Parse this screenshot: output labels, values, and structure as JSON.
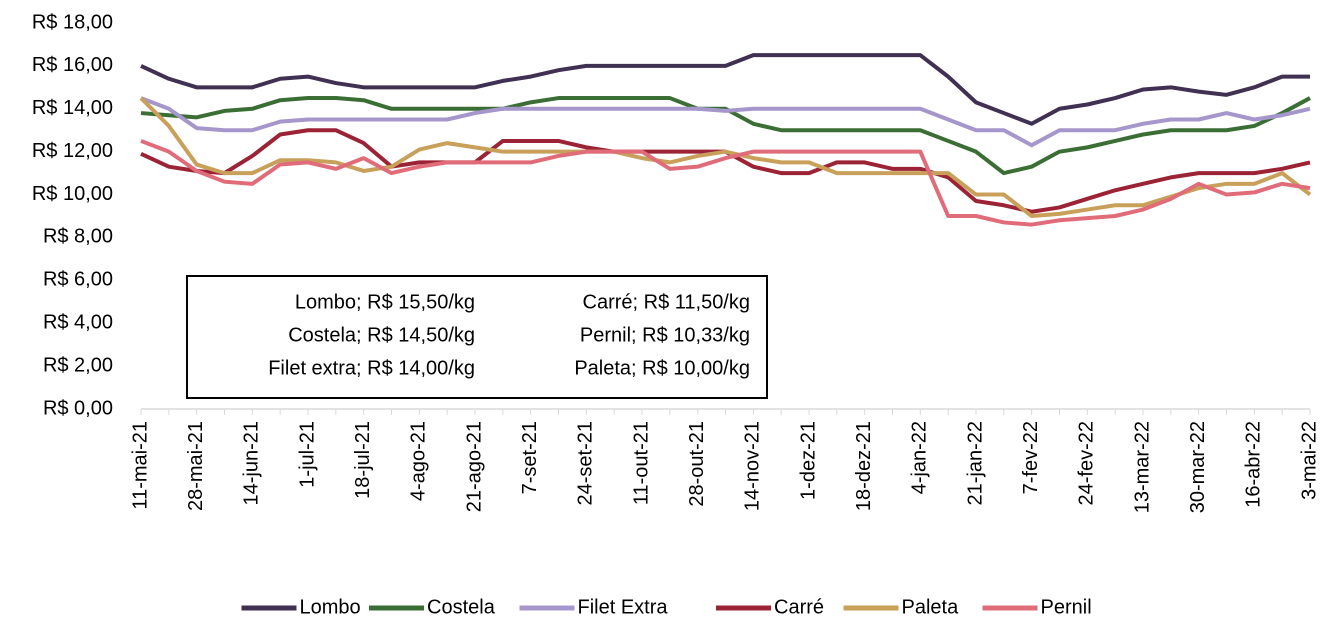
{
  "chart_data": {
    "type": "line",
    "categories": [
      "11-mai-21",
      null,
      "28-mai-21",
      null,
      "14-jun-21",
      null,
      "1-jul-21",
      null,
      "18-jul-21",
      null,
      "4-ago-21",
      null,
      "21-ago-21",
      null,
      "7-set-21",
      null,
      "24-set-21",
      null,
      "11-out-21",
      null,
      "28-out-21",
      null,
      "14-nov-21",
      null,
      "1-dez-21",
      null,
      "18-dez-21",
      null,
      "4-jan-22",
      null,
      "21-jan-22",
      null,
      "7-fev-22",
      null,
      "24-fev-22",
      null,
      "13-mar-22",
      null,
      "30-mar-22",
      null,
      "16-abr-22",
      null,
      "3-mai-22"
    ],
    "series": [
      {
        "name": "Lombo",
        "color": "#403152",
        "values": [
          16,
          15.4,
          15,
          15,
          15,
          15.4,
          15.5,
          15.2,
          15,
          15,
          15,
          15,
          15,
          15.3,
          15.5,
          15.8,
          16,
          16,
          16,
          16,
          16,
          16,
          16.5,
          16.5,
          16.5,
          16.5,
          16.5,
          16.5,
          16.5,
          15.5,
          14.3,
          13.8,
          13.3,
          14,
          14.2,
          14.5,
          14.9,
          15,
          14.8,
          14.65,
          15,
          15.5,
          15.5
        ]
      },
      {
        "name": "Costela",
        "color": "#3b6e35",
        "values": [
          13.8,
          13.7,
          13.6,
          13.9,
          14,
          14.4,
          14.5,
          14.5,
          14.4,
          14,
          14,
          14,
          14,
          14,
          14.3,
          14.5,
          14.5,
          14.5,
          14.5,
          14.5,
          14,
          14,
          13.3,
          13,
          13,
          13,
          13,
          13,
          13,
          12.5,
          12,
          11,
          11.3,
          12,
          12.2,
          12.5,
          12.8,
          13,
          13,
          13,
          13.2,
          13.8,
          14.5
        ]
      },
      {
        "name": "Filet Extra",
        "color": "#a596cc",
        "values": [
          14.5,
          14,
          13.1,
          13,
          13,
          13.4,
          13.5,
          13.5,
          13.5,
          13.5,
          13.5,
          13.5,
          13.8,
          14,
          14,
          14,
          14,
          14,
          14,
          14,
          14,
          13.9,
          14,
          14,
          14,
          14,
          14,
          14,
          14,
          13.5,
          13,
          13,
          12.3,
          13,
          13,
          13,
          13.3,
          13.5,
          13.5,
          13.8,
          13.5,
          13.7,
          14
        ]
      },
      {
        "name": "Carré",
        "color": "#9b2335",
        "values": [
          11.9,
          11.3,
          11.1,
          11,
          11.8,
          12.8,
          13,
          13,
          12.4,
          11.3,
          11.5,
          11.5,
          11.5,
          12.5,
          12.5,
          12.5,
          12.2,
          12,
          12,
          12,
          12,
          12,
          11.3,
          11,
          11,
          11.5,
          11.5,
          11.2,
          11.2,
          10.8,
          9.7,
          9.5,
          9.2,
          9.4,
          9.8,
          10.2,
          10.5,
          10.8,
          11,
          11,
          11,
          11.2,
          11.5
        ]
      },
      {
        "name": "Paleta",
        "color": "#c9a05a",
        "values": [
          14.5,
          13.2,
          11.4,
          11,
          11,
          11.6,
          11.6,
          11.5,
          11.1,
          11.3,
          12.1,
          12.4,
          12.2,
          12,
          12,
          12,
          12,
          12,
          11.7,
          11.5,
          11.8,
          12,
          11.7,
          11.5,
          11.5,
          11,
          11,
          11,
          11,
          11,
          10,
          10,
          9,
          9.1,
          9.3,
          9.5,
          9.5,
          9.9,
          10.3,
          10.5,
          10.5,
          11,
          10
        ]
      },
      {
        "name": "Pernil",
        "color": "#e06c7a",
        "values": [
          12.5,
          12,
          11.1,
          10.6,
          10.5,
          11.4,
          11.5,
          11.2,
          11.7,
          11,
          11.3,
          11.5,
          11.5,
          11.5,
          11.5,
          11.8,
          12,
          12,
          12,
          11.2,
          11.3,
          11.7,
          12,
          12,
          12,
          12,
          12,
          12,
          12,
          9,
          9,
          8.7,
          8.6,
          8.8,
          8.9,
          9,
          9.3,
          9.8,
          10.5,
          10,
          10.1,
          10.5,
          10.3
        ]
      }
    ],
    "ylim": [
      0,
      18
    ],
    "yticks": [
      {
        "value": 0,
        "label": "R$ 0,00"
      },
      {
        "value": 2,
        "label": "R$ 2,00"
      },
      {
        "value": 4,
        "label": "R$ 4,00"
      },
      {
        "value": 6,
        "label": "R$ 6,00"
      },
      {
        "value": 8,
        "label": "R$ 8,00"
      },
      {
        "value": 10,
        "label": "R$ 10,00"
      },
      {
        "value": 12,
        "label": "R$ 12,00"
      },
      {
        "value": 14,
        "label": "R$ 14,00"
      },
      {
        "value": 16,
        "label": "R$ 16,00"
      },
      {
        "value": 18,
        "label": "R$ 18,00"
      }
    ],
    "annotations": [
      "Lombo; R$ 15,50/kg",
      "Costela; R$ 14,50/kg",
      "Filet extra; R$ 14,00/kg",
      "Carré; R$ 11,50/kg",
      "Pernil; R$ 10,33/kg",
      "Paleta; R$ 10,00/kg"
    ],
    "legend": "bottom"
  }
}
